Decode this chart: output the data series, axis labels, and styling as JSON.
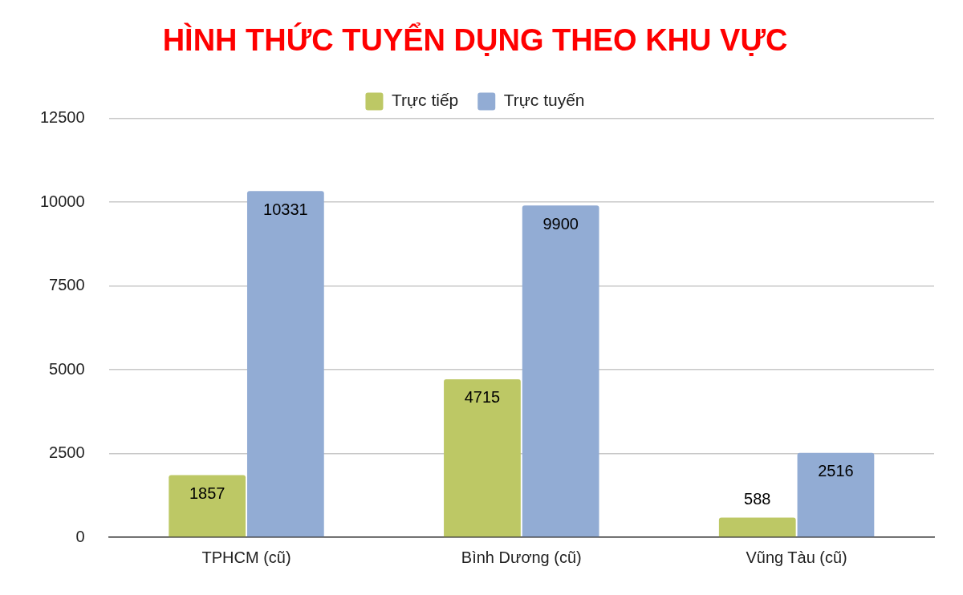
{
  "chart_data": {
    "type": "bar",
    "title": "HÌNH THỨC TUYỂN DỤNG THEO KHU VỰC",
    "categories": [
      "TPHCM (cũ)",
      "Bình Dương (cũ)",
      "Vũng Tàu (cũ)"
    ],
    "series": [
      {
        "name": "Trực tiếp",
        "color": "#bdc865",
        "values": [
          1857,
          4715,
          588
        ]
      },
      {
        "name": "Trực tuyến",
        "color": "#92acd4",
        "values": [
          10331,
          9900,
          2516
        ]
      }
    ],
    "ylim": [
      0,
      12500
    ],
    "yticks": [
      0,
      2500,
      5000,
      7500,
      10000,
      12500
    ],
    "grid": "y",
    "legend": "top",
    "data_labels": true
  }
}
